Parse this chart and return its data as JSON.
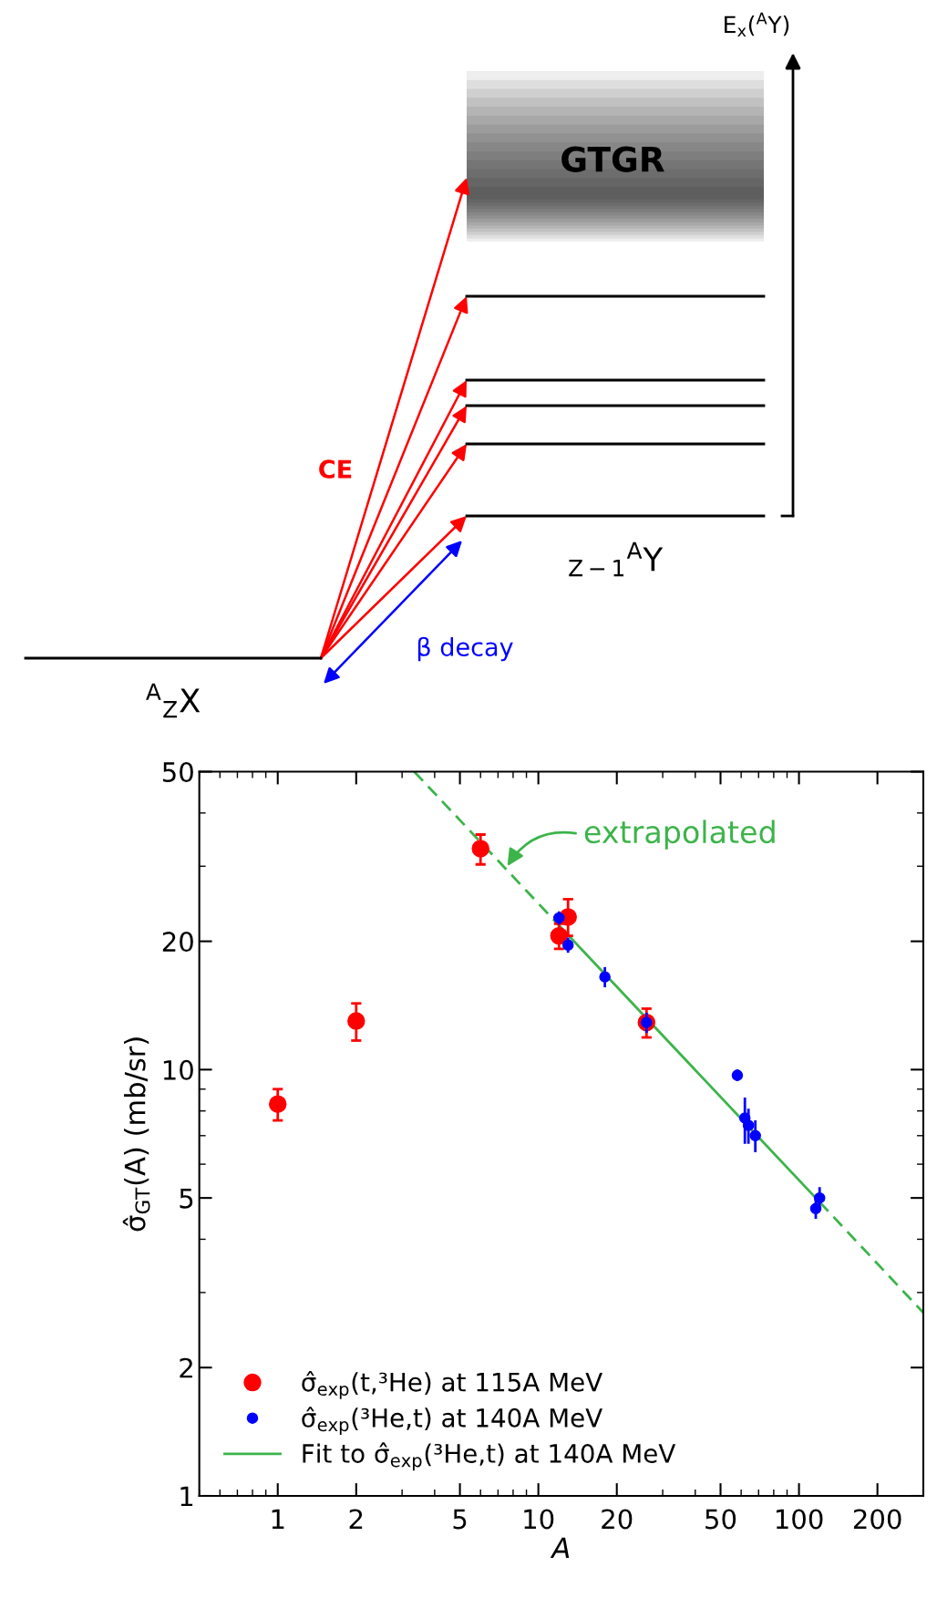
{
  "chart_data": [
    {
      "type": "other",
      "annotations": [
        "E$_{x}$($^{A}$Y)",
        "GTGR",
        "CE",
        "β decay",
        "$^{A}$$_{Z}$X",
        "$_{Z−1}$$^{A}$Y"
      ]
    },
    {
      "type": "scatter",
      "xlabel": "A",
      "ylabel": "σ̂$_{GT}$(A) (mb/sr)",
      "log": "xy",
      "xlim": [
        0.5,
        300
      ],
      "ylim": [
        1,
        50
      ],
      "xticks": [
        1,
        2,
        5,
        10,
        20,
        50,
        100,
        200
      ],
      "yticks": [
        1,
        2,
        5,
        10,
        20,
        50
      ],
      "legend": "bottom left",
      "grid": false,
      "marker": "circle",
      "annotations": [
        {
          "text": "extrapolated",
          "x": 7.6,
          "y": 30
        }
      ],
      "series": [
        {
          "name": "σ̂$_{exp}$(t,³He) at 115A MeV",
          "color": "#ff0000",
          "x": [
            1,
            2,
            6,
            12,
            13,
            26
          ],
          "values": [
            8.3,
            13.0,
            33.0,
            20.6,
            22.8,
            12.9
          ],
          "errors": [
            [
              7.6,
              9.0
            ],
            [
              11.7,
              14.3
            ],
            [
              30.3,
              35.6
            ],
            [
              19.2,
              22.0
            ],
            [
              20.6,
              25.1
            ],
            [
              11.9,
              13.9
            ]
          ]
        },
        {
          "name": "σ̂$_{exp}$(³He,t) at 140A MeV",
          "color": "#0000ff",
          "x": [
            12,
            13,
            18,
            26,
            58,
            62,
            64,
            68,
            116,
            120
          ],
          "values": [
            22.7,
            19.6,
            16.5,
            12.9,
            9.7,
            7.7,
            7.4,
            7.0,
            4.72,
            5.0
          ],
          "errors": [
            0.8,
            0.8,
            0.9,
            0.7,
            0.3,
            [
              6.7,
              8.6
            ],
            0.7,
            0.6,
            0.25,
            0.3
          ]
        },
        {
          "type": "line",
          "line_style": "dashed",
          "marker": "none",
          "color": "#3cb44a",
          "x": [
            3.34,
            12
          ],
          "values": [
            50,
            21.8
          ]
        },
        {
          "type": "line",
          "line_style": "solid",
          "marker": "none",
          "name": "Fit to σ̂$_{exp}$(³He,t) at 140A MeV",
          "color": "#3cb44a",
          "x": [
            12,
            120
          ],
          "values": [
            21.8,
            4.89
          ]
        },
        {
          "type": "line",
          "line_style": "dashed",
          "marker": "none",
          "color": "#3cb44a",
          "x": [
            120,
            300
          ],
          "values": [
            4.89,
            2.69
          ]
        }
      ]
    }
  ]
}
